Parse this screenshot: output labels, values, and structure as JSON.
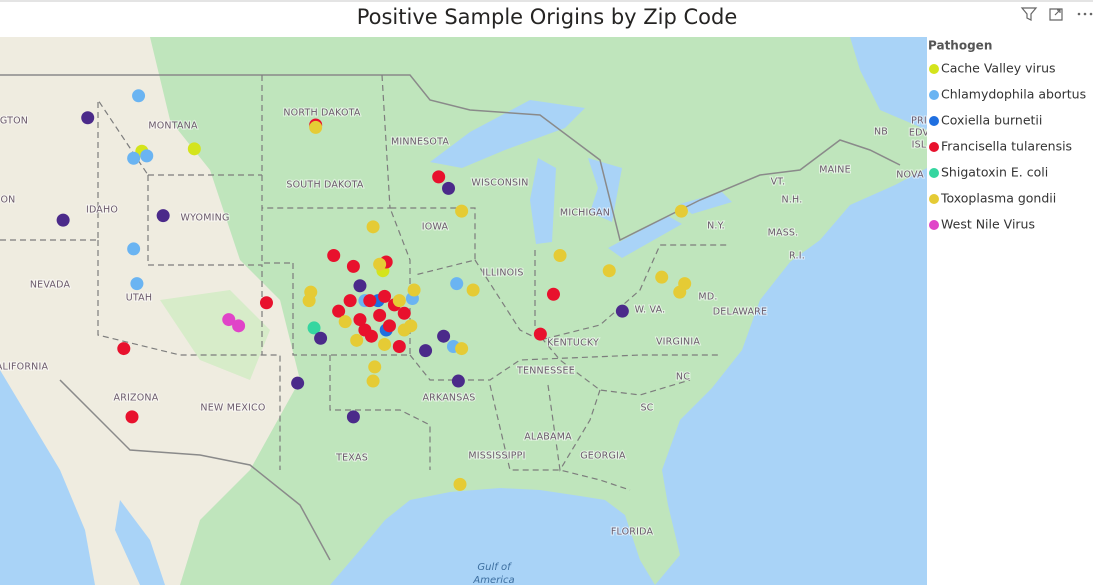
{
  "chart_data": {
    "type": "map",
    "title": "Positive Sample Origins by Zip Code",
    "legend_title": "Pathogen",
    "map_labels": [
      "NORTH DAKOTA",
      "MINNESOTA",
      "MONTANA",
      "SOUTH DAKOTA",
      "WISCONSIN",
      "MICHIGAN",
      "IDAHO",
      "WYOMING",
      "IOWA",
      "NEVADA",
      "UTAH",
      "ILLINOIS",
      "NEW MEXICO",
      "ARIZONA",
      "TEXAS",
      "ARKANSAS",
      "TENNESSEE",
      "KENTUCKY",
      "VIRGINIA",
      "W. VA.",
      "NC",
      "SC",
      "ALABAMA",
      "MISSISSIPPI",
      "GEORGIA",
      "FLORIDA",
      "DELAWARE",
      "MD.",
      "N.Y.",
      "MASS.",
      "VT.",
      "N.H.",
      "MAINE",
      "R.I.",
      "NB",
      "NOVA",
      "GTON",
      "ON",
      "ALIFORNIA",
      "PRI",
      "EDV",
      "ISL"
    ],
    "water_labels": [
      "Gulf of",
      "America"
    ],
    "series": [
      {
        "name": "Cache Valley virus",
        "color": "#d4e41c",
        "points": [
          {
            "lon": -108.2,
            "lat": 46.0
          },
          {
            "lon": -111.4,
            "lat": 45.9
          },
          {
            "lon": -96.7,
            "lat": 40.6
          }
        ]
      },
      {
        "name": "Chlamydophila abortus",
        "color": "#6ab4f2",
        "points": [
          {
            "lon": -111.6,
            "lat": 48.2
          },
          {
            "lon": -111.9,
            "lat": 45.6
          },
          {
            "lon": -111.1,
            "lat": 45.7
          },
          {
            "lon": -111.9,
            "lat": 41.6
          },
          {
            "lon": -111.7,
            "lat": 40.0
          },
          {
            "lon": -92.2,
            "lat": 40.0
          },
          {
            "lon": -97.8,
            "lat": 39.2
          },
          {
            "lon": -94.9,
            "lat": 39.3
          },
          {
            "lon": -92.4,
            "lat": 37.0
          }
        ]
      },
      {
        "name": "Coxiella burnetii",
        "color": "#1f6fe0",
        "points": [
          {
            "lon": -97.0,
            "lat": 39.2
          },
          {
            "lon": -96.5,
            "lat": 37.8
          }
        ]
      },
      {
        "name": "Francisella tularensis",
        "color": "#e8112d",
        "points": [
          {
            "lon": -93.3,
            "lat": 44.8
          },
          {
            "lon": -112.5,
            "lat": 36.9
          },
          {
            "lon": -112.0,
            "lat": 33.5
          },
          {
            "lon": -103.8,
            "lat": 39.1
          },
          {
            "lon": -99.7,
            "lat": 41.3
          },
          {
            "lon": -98.5,
            "lat": 40.8
          },
          {
            "lon": -96.5,
            "lat": 41.0
          },
          {
            "lon": -86.3,
            "lat": 39.5
          },
          {
            "lon": -87.1,
            "lat": 37.6
          },
          {
            "lon": -95.7,
            "lat": 37.0
          },
          {
            "lon": -99.4,
            "lat": 38.7
          },
          {
            "lon": -97.5,
            "lat": 39.2
          },
          {
            "lon": -96.9,
            "lat": 38.5
          },
          {
            "lon": -96.3,
            "lat": 38.0
          },
          {
            "lon": -97.8,
            "lat": 37.8
          },
          {
            "lon": -96.0,
            "lat": 39.0
          },
          {
            "lon": -96.6,
            "lat": 39.4
          },
          {
            "lon": -97.4,
            "lat": 37.5
          },
          {
            "lon": -95.4,
            "lat": 38.6
          },
          {
            "lon": -98.1,
            "lat": 38.3
          },
          {
            "lon": -98.7,
            "lat": 39.2
          },
          {
            "lon": -100.8,
            "lat": 47.0
          }
        ]
      },
      {
        "name": "Shigatoxin E. coli",
        "color": "#35d6a0",
        "points": [
          {
            "lon": -100.9,
            "lat": 37.9
          }
        ]
      },
      {
        "name": "Toxoplasma gondii",
        "color": "#e5cb35",
        "points": [
          {
            "lon": -91.9,
            "lat": 43.3
          },
          {
            "lon": -100.8,
            "lat": 46.9
          },
          {
            "lon": -97.3,
            "lat": 42.6
          },
          {
            "lon": -96.9,
            "lat": 40.9
          },
          {
            "lon": -101.1,
            "lat": 39.6
          },
          {
            "lon": -101.2,
            "lat": 39.2
          },
          {
            "lon": -99.0,
            "lat": 38.2
          },
          {
            "lon": -98.3,
            "lat": 37.3
          },
          {
            "lon": -97.3,
            "lat": 35.3
          },
          {
            "lon": -97.2,
            "lat": 36.0
          },
          {
            "lon": -95.4,
            "lat": 37.8
          },
          {
            "lon": -94.8,
            "lat": 39.7
          },
          {
            "lon": -95.0,
            "lat": 38.0
          },
          {
            "lon": -91.2,
            "lat": 39.7
          },
          {
            "lon": -91.9,
            "lat": 36.9
          },
          {
            "lon": -85.9,
            "lat": 41.3
          },
          {
            "lon": -82.9,
            "lat": 40.6
          },
          {
            "lon": -79.7,
            "lat": 40.3
          },
          {
            "lon": -78.3,
            "lat": 40.0
          },
          {
            "lon": -78.6,
            "lat": 39.6
          },
          {
            "lon": -78.5,
            "lat": 43.3
          },
          {
            "lon": -92.0,
            "lat": 30.0
          },
          {
            "lon": -95.7,
            "lat": 39.2
          },
          {
            "lon": -96.6,
            "lat": 37.1
          }
        ]
      },
      {
        "name": "West Nile Virus",
        "color": "#e044c8",
        "points": [
          {
            "lon": -106.1,
            "lat": 38.3
          },
          {
            "lon": -105.5,
            "lat": 38.0
          }
        ]
      },
      {
        "name": null,
        "color": "#4b2a8a",
        "points": [
          {
            "lon": -114.7,
            "lat": 47.3
          },
          {
            "lon": -116.2,
            "lat": 42.9
          },
          {
            "lon": -110.1,
            "lat": 43.1
          },
          {
            "lon": -101.9,
            "lat": 35.2
          },
          {
            "lon": -98.5,
            "lat": 33.5
          },
          {
            "lon": -100.5,
            "lat": 37.4
          },
          {
            "lon": -94.1,
            "lat": 36.8
          },
          {
            "lon": -93.0,
            "lat": 37.5
          },
          {
            "lon": -92.1,
            "lat": 35.3
          },
          {
            "lon": -82.1,
            "lat": 38.7
          },
          {
            "lon": -92.7,
            "lat": 44.3
          },
          {
            "lon": -98.1,
            "lat": 39.9
          }
        ]
      }
    ]
  }
}
